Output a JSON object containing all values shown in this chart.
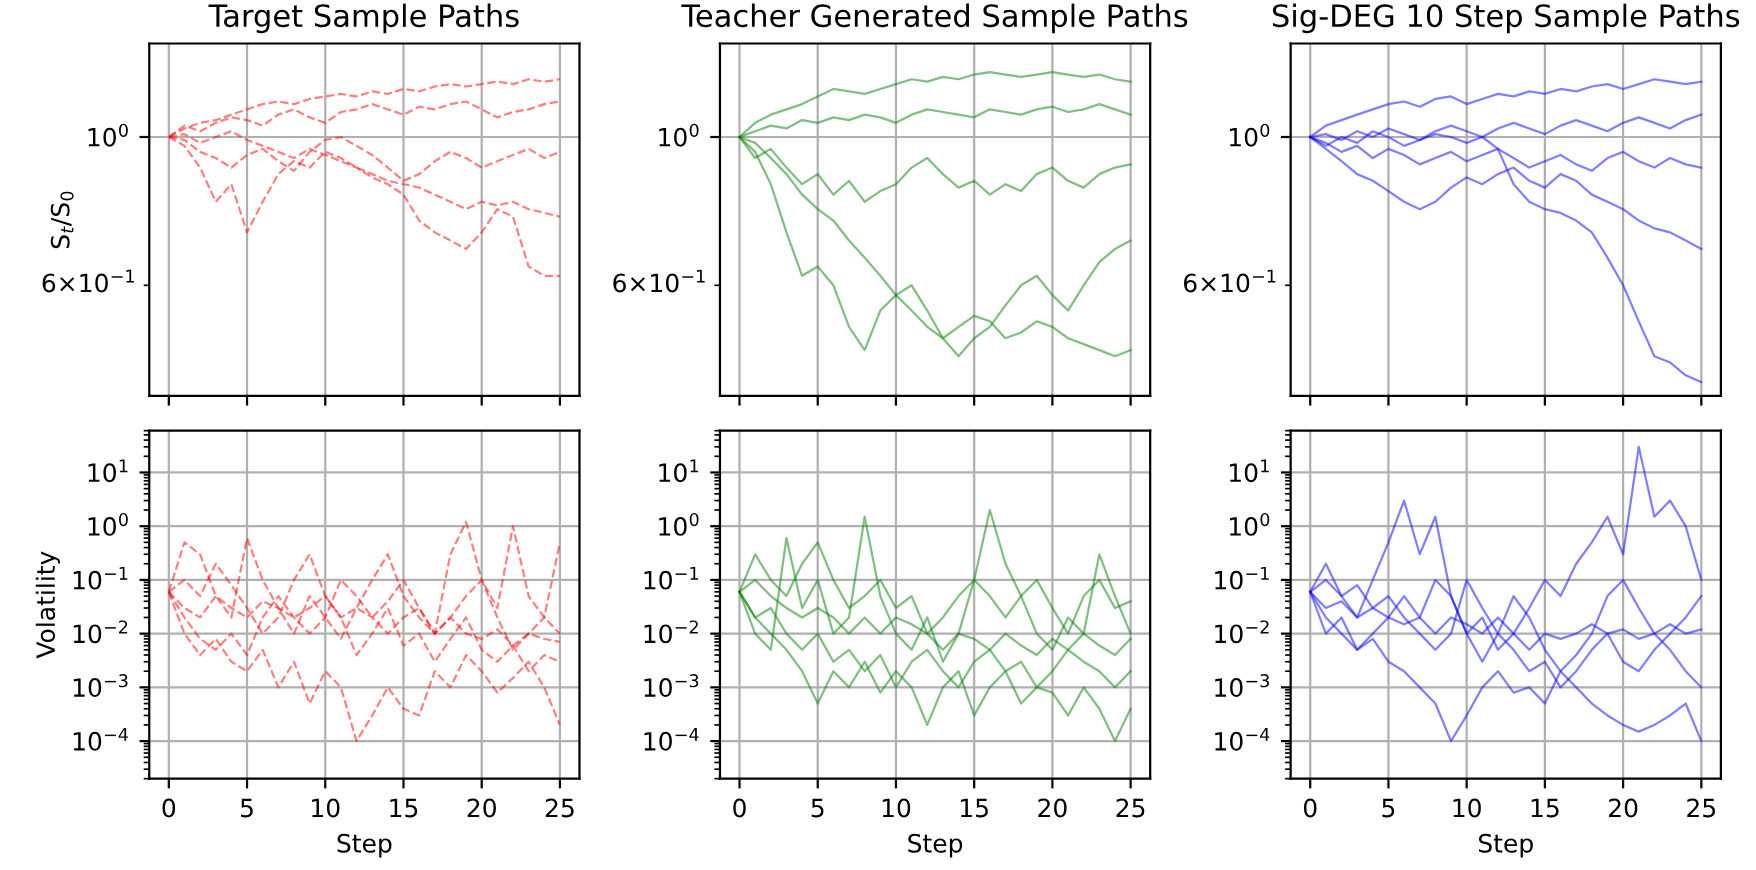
{
  "chart_data": [
    {
      "type": "line",
      "title": "Target Sample Paths",
      "ylabel": "S$_{t}$/S$_{0}$",
      "log": "y",
      "grid": true,
      "line_style": "dashed",
      "tick_labels": "y",
      "x": [
        0,
        1,
        2,
        3,
        4,
        5,
        6,
        7,
        8,
        9,
        10,
        11,
        12,
        13,
        14,
        15,
        16,
        17,
        18,
        19,
        20,
        21,
        22,
        23,
        24,
        25
      ],
      "xlim": [
        -1.25,
        26.25
      ],
      "xticks": [
        0,
        5,
        10,
        15,
        20,
        25
      ],
      "ylim": [
        0.41,
        1.38
      ],
      "yticks": [
        {
          "value": 1,
          "label": "10$^{0}$"
        },
        {
          "value": 0.6,
          "label": "6×10$^{−1}$"
        }
      ],
      "series": [
        {
          "color": "#ff0000",
          "values": [
            1,
            1.03,
            1.05,
            1.06,
            1.08,
            1.1,
            1.12,
            1.13,
            1.12,
            1.14,
            1.15,
            1.16,
            1.15,
            1.17,
            1.16,
            1.18,
            1.17,
            1.19,
            1.2,
            1.19,
            1.2,
            1.21,
            1.2,
            1.22,
            1.21,
            1.22
          ]
        },
        {
          "color": "#ff0000",
          "values": [
            1,
            0.97,
            0.9,
            0.8,
            0.85,
            0.72,
            0.8,
            0.88,
            0.92,
            0.9,
            0.95,
            0.93,
            0.9,
            0.88,
            0.86,
            0.85,
            0.84,
            0.82,
            0.8,
            0.78,
            0.8,
            0.79,
            0.8,
            0.78,
            0.77,
            0.76
          ]
        },
        {
          "color": "#ff0000",
          "values": [
            1,
            1.01,
            0.98,
            1.0,
            1.02,
            0.99,
            0.97,
            0.95,
            0.93,
            0.96,
            0.94,
            0.92,
            0.9,
            0.87,
            0.85,
            0.82,
            0.75,
            0.72,
            0.7,
            0.68,
            0.72,
            0.78,
            0.76,
            0.64,
            0.62,
            0.62
          ]
        },
        {
          "color": "#ff0000",
          "values": [
            1,
            1.04,
            1.02,
            1.05,
            1.07,
            1.06,
            1.04,
            1.08,
            1.1,
            1.07,
            1.05,
            1.09,
            1.1,
            1.12,
            1.1,
            1.08,
            1.11,
            1.1,
            1.12,
            1.13,
            1.1,
            1.07,
            1.09,
            1.1,
            1.12,
            1.13
          ]
        },
        {
          "color": "#ff0000",
          "values": [
            1,
            0.99,
            0.95,
            0.93,
            0.9,
            0.94,
            0.96,
            0.92,
            0.89,
            0.95,
            0.99,
            1.0,
            0.97,
            0.94,
            0.9,
            0.86,
            0.88,
            0.92,
            0.95,
            0.93,
            0.9,
            0.92,
            0.94,
            0.96,
            0.93,
            0.95
          ]
        }
      ]
    },
    {
      "type": "line",
      "title": "Teacher Generated Sample Paths",
      "log": "y",
      "grid": true,
      "line_style": "solid",
      "tick_labels": "y",
      "x": [
        0,
        1,
        2,
        3,
        4,
        5,
        6,
        7,
        8,
        9,
        10,
        11,
        12,
        13,
        14,
        15,
        16,
        17,
        18,
        19,
        20,
        21,
        22,
        23,
        24,
        25
      ],
      "xlim": [
        -1.25,
        26.25
      ],
      "xticks": [
        0,
        5,
        10,
        15,
        20,
        25
      ],
      "ylim": [
        0.41,
        1.38
      ],
      "yticks": [
        {
          "value": 1,
          "label": "10$^{0}$"
        },
        {
          "value": 0.6,
          "label": "6×10$^{−1}$"
        }
      ],
      "series": [
        {
          "color": "#008000",
          "values": [
            1,
            0.95,
            0.85,
            0.72,
            0.62,
            0.64,
            0.6,
            0.52,
            0.48,
            0.55,
            0.58,
            0.6,
            0.55,
            0.5,
            0.47,
            0.5,
            0.52,
            0.56,
            0.6,
            0.62,
            0.58,
            0.55,
            0.6,
            0.65,
            0.68,
            0.7
          ]
        },
        {
          "color": "#008000",
          "values": [
            1,
            1.05,
            1.08,
            1.1,
            1.12,
            1.15,
            1.18,
            1.17,
            1.16,
            1.18,
            1.2,
            1.22,
            1.21,
            1.23,
            1.22,
            1.24,
            1.25,
            1.24,
            1.23,
            1.24,
            1.25,
            1.24,
            1.23,
            1.24,
            1.22,
            1.21
          ]
        },
        {
          "color": "#008000",
          "values": [
            1,
            1.02,
            1.04,
            1.03,
            1.06,
            1.05,
            1.07,
            1.06,
            1.08,
            1.07,
            1.05,
            1.08,
            1.1,
            1.09,
            1.08,
            1.07,
            1.1,
            1.09,
            1.08,
            1.1,
            1.11,
            1.09,
            1.1,
            1.12,
            1.1,
            1.08
          ]
        },
        {
          "color": "#008000",
          "values": [
            1,
            0.93,
            0.96,
            0.9,
            0.85,
            0.88,
            0.82,
            0.86,
            0.8,
            0.83,
            0.85,
            0.9,
            0.93,
            0.88,
            0.84,
            0.86,
            0.82,
            0.85,
            0.83,
            0.88,
            0.9,
            0.86,
            0.84,
            0.88,
            0.9,
            0.91
          ]
        },
        {
          "color": "#008000",
          "values": [
            1,
            0.98,
            0.93,
            0.88,
            0.82,
            0.78,
            0.75,
            0.7,
            0.66,
            0.62,
            0.58,
            0.55,
            0.52,
            0.5,
            0.52,
            0.54,
            0.53,
            0.5,
            0.51,
            0.53,
            0.52,
            0.5,
            0.49,
            0.48,
            0.47,
            0.48
          ]
        }
      ]
    },
    {
      "type": "line",
      "title": "Sig-DEG 10 Step Sample Paths",
      "log": "y",
      "grid": true,
      "line_style": "solid",
      "tick_labels": "y",
      "x": [
        0,
        1,
        2,
        3,
        4,
        5,
        6,
        7,
        8,
        9,
        10,
        11,
        12,
        13,
        14,
        15,
        16,
        17,
        18,
        19,
        20,
        21,
        22,
        23,
        24,
        25
      ],
      "xlim": [
        -1.25,
        26.25
      ],
      "xticks": [
        0,
        5,
        10,
        15,
        20,
        25
      ],
      "ylim": [
        0.41,
        1.38
      ],
      "yticks": [
        {
          "value": 1,
          "label": "10$^{0}$"
        },
        {
          "value": 0.6,
          "label": "6×10$^{−1}$"
        }
      ],
      "series": [
        {
          "color": "#0000ff",
          "values": [
            1,
            0.97,
            1.0,
            0.98,
            1.02,
            1.0,
            0.97,
            0.99,
            1.01,
            1.0,
            0.98,
            1.0,
            0.96,
            0.85,
            0.8,
            0.78,
            0.77,
            0.75,
            0.72,
            0.66,
            0.6,
            0.53,
            0.47,
            0.46,
            0.44,
            0.43
          ]
        },
        {
          "color": "#0000ff",
          "values": [
            1,
            1.04,
            1.06,
            1.08,
            1.1,
            1.12,
            1.13,
            1.11,
            1.14,
            1.15,
            1.12,
            1.14,
            1.16,
            1.15,
            1.17,
            1.16,
            1.18,
            1.17,
            1.19,
            1.2,
            1.18,
            1.2,
            1.22,
            1.21,
            1.2,
            1.21
          ]
        },
        {
          "color": "#0000ff",
          "values": [
            1,
            0.96,
            0.92,
            0.88,
            0.86,
            0.83,
            0.8,
            0.78,
            0.8,
            0.84,
            0.87,
            0.85,
            0.88,
            0.9,
            0.86,
            0.84,
            0.88,
            0.86,
            0.82,
            0.8,
            0.78,
            0.75,
            0.73,
            0.72,
            0.7,
            0.68
          ]
        },
        {
          "color": "#0000ff",
          "values": [
            1,
            1.01,
            0.99,
            1.02,
            1.0,
            1.03,
            1.01,
            0.99,
            1.02,
            1.04,
            1.02,
            1.0,
            1.03,
            1.05,
            1.03,
            1.01,
            1.04,
            1.06,
            1.04,
            1.02,
            1.05,
            1.07,
            1.05,
            1.03,
            1.06,
            1.08
          ]
        },
        {
          "color": "#0000ff",
          "values": [
            1,
            0.98,
            0.95,
            0.97,
            0.93,
            0.96,
            0.94,
            0.91,
            0.93,
            0.95,
            0.92,
            0.94,
            0.96,
            0.93,
            0.9,
            0.92,
            0.94,
            0.91,
            0.89,
            0.93,
            0.95,
            0.92,
            0.9,
            0.93,
            0.91,
            0.9
          ]
        }
      ]
    },
    {
      "type": "line",
      "ylabel": "Volatility",
      "xlabel": "Step",
      "log": "y",
      "grid": true,
      "line_style": "dashed",
      "x": [
        0,
        1,
        2,
        3,
        4,
        5,
        6,
        7,
        8,
        9,
        10,
        11,
        12,
        13,
        14,
        15,
        16,
        17,
        18,
        19,
        20,
        21,
        22,
        23,
        24,
        25
      ],
      "xlim": [
        -1.25,
        26.25
      ],
      "xticks": [
        0,
        5,
        10,
        15,
        20,
        25
      ],
      "ylim": [
        2e-05,
        60
      ],
      "yticks": [
        {
          "value": 0.0001,
          "label": "10$^{−4}$"
        },
        {
          "value": 0.001,
          "label": "10$^{−3}$"
        },
        {
          "value": 0.01,
          "label": "10$^{−2}$"
        },
        {
          "value": 0.1,
          "label": "10$^{−1}$"
        },
        {
          "value": 1,
          "label": "10$^{0}$"
        },
        {
          "value": 10,
          "label": "10$^{1}$"
        }
      ],
      "series": [
        {
          "color": "#ff0000",
          "values": [
            0.06,
            0.5,
            0.3,
            0.05,
            0.02,
            0.6,
            0.1,
            0.03,
            0.01,
            0.05,
            0.02,
            0.008,
            0.03,
            0.1,
            0.3,
            0.05,
            0.02,
            0.01,
            0.3,
            1.2,
            0.1,
            0.02,
            0.005,
            0.01,
            0.02,
            0.5
          ]
        },
        {
          "color": "#ff0000",
          "values": [
            0.06,
            0.01,
            0.004,
            0.008,
            0.003,
            0.002,
            0.005,
            0.001,
            0.003,
            0.0005,
            0.002,
            0.001,
            0.0001,
            0.0003,
            0.001,
            0.0004,
            0.0003,
            0.002,
            0.001,
            0.004,
            0.002,
            0.0008,
            0.0015,
            0.003,
            0.001,
            0.0002
          ]
        },
        {
          "color": "#ff0000",
          "values": [
            0.06,
            0.03,
            0.02,
            0.05,
            0.03,
            0.02,
            0.04,
            0.03,
            0.02,
            0.03,
            0.05,
            0.02,
            0.03,
            0.02,
            0.01,
            0.02,
            0.03,
            0.01,
            0.02,
            0.01,
            0.008,
            0.012,
            0.006,
            0.01,
            0.008,
            0.007
          ]
        },
        {
          "color": "#ff0000",
          "values": [
            0.06,
            0.1,
            0.05,
            0.2,
            0.08,
            0.03,
            0.01,
            0.02,
            0.1,
            0.3,
            0.05,
            0.02,
            0.004,
            0.01,
            0.03,
            0.006,
            0.01,
            0.003,
            0.008,
            0.02,
            0.005,
            0.003,
            0.006,
            0.002,
            0.004,
            0.003
          ]
        },
        {
          "color": "#ff0000",
          "values": [
            0.06,
            0.02,
            0.008,
            0.005,
            0.01,
            0.004,
            0.02,
            0.05,
            0.02,
            0.01,
            0.02,
            0.1,
            0.05,
            0.02,
            0.04,
            0.1,
            0.03,
            0.01,
            0.02,
            0.05,
            0.1,
            0.03,
            1.0,
            0.05,
            0.02,
            0.01
          ]
        }
      ]
    },
    {
      "type": "line",
      "xlabel": "Step",
      "log": "y",
      "grid": true,
      "line_style": "solid",
      "x": [
        0,
        1,
        2,
        3,
        4,
        5,
        6,
        7,
        8,
        9,
        10,
        11,
        12,
        13,
        14,
        15,
        16,
        17,
        18,
        19,
        20,
        21,
        22,
        23,
        24,
        25
      ],
      "xlim": [
        -1.25,
        26.25
      ],
      "xticks": [
        0,
        5,
        10,
        15,
        20,
        25
      ],
      "ylim": [
        2e-05,
        60
      ],
      "yticks": [
        {
          "value": 0.0001,
          "label": "10$^{−4}$"
        },
        {
          "value": 0.001,
          "label": "10$^{−3}$"
        },
        {
          "value": 0.01,
          "label": "10$^{−2}$"
        },
        {
          "value": 0.1,
          "label": "10$^{−1}$"
        },
        {
          "value": 1,
          "label": "10$^{0}$"
        },
        {
          "value": 10,
          "label": "10$^{1}$"
        }
      ],
      "series": [
        {
          "color": "#008000",
          "values": [
            0.06,
            0.01,
            0.005,
            0.6,
            0.03,
            0.1,
            0.01,
            0.02,
            1.5,
            0.05,
            0.01,
            0.005,
            0.02,
            0.003,
            0.01,
            0.1,
            2.0,
            0.2,
            0.05,
            0.01,
            0.005,
            0.02,
            0.01,
            0.3,
            0.05,
            0.01
          ]
        },
        {
          "color": "#008000",
          "values": [
            0.06,
            0.02,
            0.01,
            0.005,
            0.002,
            0.0005,
            0.002,
            0.001,
            0.003,
            0.0008,
            0.002,
            0.001,
            0.0002,
            0.001,
            0.002,
            0.0003,
            0.001,
            0.002,
            0.0005,
            0.001,
            0.0008,
            0.0003,
            0.001,
            0.0004,
            0.0001,
            0.0004
          ]
        },
        {
          "color": "#008000",
          "values": [
            0.06,
            0.1,
            0.05,
            0.03,
            0.02,
            0.03,
            0.02,
            0.01,
            0.02,
            0.01,
            0.02,
            0.015,
            0.01,
            0.005,
            0.01,
            0.008,
            0.005,
            0.01,
            0.006,
            0.004,
            0.008,
            0.005,
            0.01,
            0.006,
            0.004,
            0.008
          ]
        },
        {
          "color": "#008000",
          "values": [
            0.06,
            0.3,
            0.1,
            0.05,
            0.2,
            0.5,
            0.1,
            0.03,
            0.05,
            0.1,
            0.03,
            0.05,
            0.01,
            0.02,
            0.05,
            0.1,
            0.05,
            0.02,
            0.05,
            0.1,
            0.03,
            0.01,
            0.05,
            0.1,
            0.03,
            0.04
          ]
        },
        {
          "color": "#008000",
          "values": [
            0.06,
            0.02,
            0.03,
            0.01,
            0.005,
            0.01,
            0.003,
            0.005,
            0.002,
            0.004,
            0.001,
            0.003,
            0.005,
            0.002,
            0.001,
            0.003,
            0.005,
            0.002,
            0.003,
            0.001,
            0.002,
            0.005,
            0.003,
            0.002,
            0.001,
            0.002
          ]
        }
      ]
    },
    {
      "type": "line",
      "xlabel": "Step",
      "log": "y",
      "grid": true,
      "line_style": "solid",
      "x": [
        0,
        1,
        2,
        3,
        4,
        5,
        6,
        7,
        8,
        9,
        10,
        11,
        12,
        13,
        14,
        15,
        16,
        17,
        18,
        19,
        20,
        21,
        22,
        23,
        24,
        25
      ],
      "xlim": [
        -1.25,
        26.25
      ],
      "xticks": [
        0,
        5,
        10,
        15,
        20,
        25
      ],
      "ylim": [
        2e-05,
        60
      ],
      "yticks": [
        {
          "value": 0.0001,
          "label": "10$^{−4}$"
        },
        {
          "value": 0.001,
          "label": "10$^{−3}$"
        },
        {
          "value": 0.01,
          "label": "10$^{−2}$"
        },
        {
          "value": 0.1,
          "label": "10$^{−1}$"
        },
        {
          "value": 1,
          "label": "10$^{0}$"
        },
        {
          "value": 10,
          "label": "10$^{1}$"
        }
      ],
      "series": [
        {
          "color": "#0000ff",
          "values": [
            0.06,
            0.2,
            0.05,
            0.02,
            0.1,
            0.5,
            3.0,
            0.3,
            1.5,
            0.05,
            0.01,
            0.02,
            0.005,
            0.01,
            0.03,
            0.1,
            0.05,
            0.2,
            0.5,
            1.5,
            0.3,
            30,
            1.5,
            3.0,
            1.0,
            0.1
          ]
        },
        {
          "color": "#0000ff",
          "values": [
            0.06,
            0.02,
            0.01,
            0.005,
            0.008,
            0.003,
            0.002,
            0.001,
            0.0005,
            0.0001,
            0.0003,
            0.001,
            0.002,
            0.0008,
            0.001,
            0.0005,
            0.002,
            0.001,
            0.0005,
            0.0003,
            0.0002,
            0.00015,
            0.0002,
            0.0003,
            0.0005,
            0.0001
          ]
        },
        {
          "color": "#0000ff",
          "values": [
            0.06,
            0.03,
            0.04,
            0.02,
            0.03,
            0.02,
            0.015,
            0.02,
            0.01,
            0.02,
            0.015,
            0.01,
            0.02,
            0.01,
            0.005,
            0.01,
            0.008,
            0.01,
            0.015,
            0.01,
            0.012,
            0.008,
            0.01,
            0.015,
            0.01,
            0.012
          ]
        },
        {
          "color": "#0000ff",
          "values": [
            0.06,
            0.1,
            0.05,
            0.08,
            0.03,
            0.05,
            0.02,
            0.01,
            0.005,
            0.01,
            0.1,
            0.03,
            0.01,
            0.05,
            0.02,
            0.005,
            0.002,
            0.004,
            0.01,
            0.05,
            0.1,
            0.03,
            0.01,
            0.005,
            0.002,
            0.001
          ]
        },
        {
          "color": "#0000ff",
          "values": [
            0.06,
            0.01,
            0.02,
            0.005,
            0.01,
            0.02,
            0.05,
            0.02,
            0.1,
            0.05,
            0.01,
            0.003,
            0.01,
            0.005,
            0.002,
            0.003,
            0.001,
            0.002,
            0.005,
            0.01,
            0.003,
            0.002,
            0.005,
            0.01,
            0.02,
            0.05
          ]
        }
      ]
    }
  ]
}
